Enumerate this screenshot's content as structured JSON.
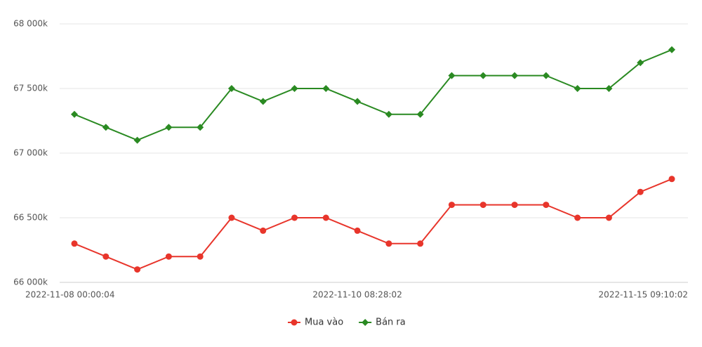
{
  "chart_data": {
    "type": "line",
    "categories": [
      "2022-11-08 00:00:04",
      null,
      null,
      null,
      null,
      null,
      null,
      null,
      null,
      "2022-11-10 08:28:02",
      null,
      null,
      null,
      null,
      null,
      null,
      null,
      null,
      null,
      "2022-11-15 09:10:02"
    ],
    "series": [
      {
        "name": "Mua vào",
        "color": "#e8352b",
        "marker": "circle",
        "values": [
          66300,
          66200,
          66100,
          66200,
          66200,
          66500,
          66400,
          66500,
          66500,
          66400,
          66300,
          66300,
          66600,
          66600,
          66600,
          66600,
          66500,
          66500,
          66700,
          66800
        ]
      },
      {
        "name": "Bán ra",
        "color": "#2a8a22",
        "marker": "diamond",
        "values": [
          67300,
          67200,
          67100,
          67200,
          67200,
          67500,
          67400,
          67500,
          67500,
          67400,
          67300,
          67300,
          67600,
          67600,
          67600,
          67600,
          67500,
          67500,
          67700,
          67800
        ]
      }
    ],
    "ylim": [
      66000,
      68000
    ],
    "yticks": [
      {
        "value": 66000,
        "label": "66 000k"
      },
      {
        "value": 66500,
        "label": "66 500k"
      },
      {
        "value": 67000,
        "label": "67 000k"
      },
      {
        "value": 67500,
        "label": "67 500k"
      },
      {
        "value": 68000,
        "label": "68 000k"
      }
    ],
    "grid": true,
    "legend": "bottom"
  }
}
